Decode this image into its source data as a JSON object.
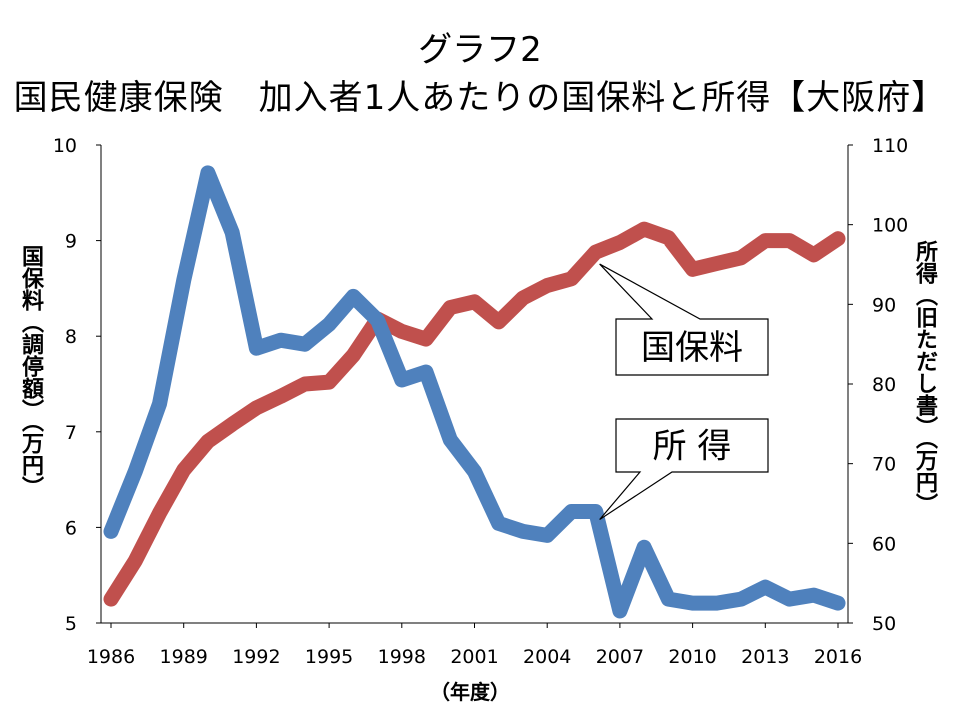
{
  "chart_data": {
    "type": "line",
    "title": "グラフ2",
    "subtitle": "国民健康保険　加入者1人あたりの国保料と所得【大阪府】",
    "xlabel": "（年度）",
    "ylabel_left": "国保料（調停額）（万円）",
    "ylabel_right": "所得（旧ただし書）（万円）",
    "y_left_lim": [
      5,
      10
    ],
    "y_left_ticks": [
      5,
      6,
      7,
      8,
      9,
      10
    ],
    "y_right_lim": [
      50,
      110
    ],
    "y_right_ticks": [
      50,
      60,
      70,
      80,
      90,
      100,
      110
    ],
    "x_lim": [
      1986,
      2016
    ],
    "x_ticks": [
      1986,
      1989,
      1992,
      1995,
      1998,
      2001,
      2004,
      2007,
      2010,
      2013,
      2016
    ],
    "grid": false,
    "series": [
      {
        "name": "国保料",
        "axis": "left",
        "color": "#c0504d",
        "x": [
          1986,
          1987,
          1988,
          1989,
          1990,
          1991,
          1992,
          1993,
          1994,
          1995,
          1996,
          1997,
          1998,
          1999,
          2000,
          2001,
          2002,
          2003,
          2004,
          2005,
          2006,
          2007,
          2008,
          2009,
          2010,
          2011,
          2012,
          2013,
          2014,
          2015,
          2016
        ],
        "values": [
          5.25,
          5.65,
          6.15,
          6.6,
          6.9,
          7.08,
          7.25,
          7.37,
          7.5,
          7.52,
          7.8,
          8.18,
          8.05,
          7.97,
          8.3,
          8.36,
          8.15,
          8.4,
          8.53,
          8.6,
          8.88,
          8.98,
          9.12,
          9.03,
          8.7,
          8.76,
          8.82,
          9.0,
          9.0,
          8.85,
          9.02
        ]
      },
      {
        "name": "所得",
        "axis": "right",
        "color": "#4f81bd",
        "x": [
          1986,
          1987,
          1988,
          1989,
          1990,
          1991,
          1992,
          1993,
          1994,
          1995,
          1996,
          1997,
          1998,
          1999,
          2000,
          2001,
          2002,
          2003,
          2004,
          2005,
          2006,
          2007,
          2008,
          2009,
          2010,
          2011,
          2012,
          2013,
          2014,
          2015,
          2016
        ],
        "values": [
          61.5,
          69.0,
          77.5,
          93.0,
          106.5,
          99.0,
          84.5,
          85.5,
          85.0,
          87.5,
          91.0,
          88.0,
          80.5,
          81.5,
          73.0,
          69.0,
          62.5,
          61.5,
          61.0,
          64.0,
          64.0,
          51.5,
          59.5,
          53.0,
          52.5,
          52.5,
          53.0,
          54.5,
          53.0,
          53.5,
          52.5
        ]
      }
    ],
    "annotations": [
      {
        "text": "国保料",
        "series": "国保料"
      },
      {
        "text": "所 得",
        "series": "所得"
      }
    ]
  }
}
